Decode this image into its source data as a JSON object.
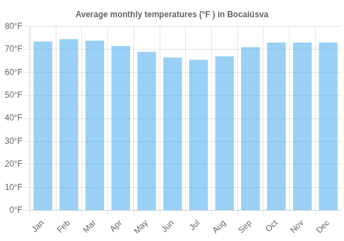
{
  "chart_data": {
    "type": "bar",
    "title": "Average monthly temperatures (°F ) in Bocaiúsva",
    "categories": [
      "Jan",
      "Feb",
      "Mar",
      "Apr",
      "May",
      "Jun",
      "Jul",
      "Aug",
      "Sep",
      "Oct",
      "Nov",
      "Dec"
    ],
    "values": [
      73.5,
      74.5,
      73.8,
      71.5,
      69.0,
      66.5,
      65.5,
      67.0,
      71.0,
      73.0,
      73.0,
      73.0
    ],
    "ylim": [
      0,
      80
    ],
    "yticks": [
      {
        "value": 0,
        "label": "0°F"
      },
      {
        "value": 10,
        "label": "10°F"
      },
      {
        "value": 20,
        "label": "20°F"
      },
      {
        "value": 30,
        "label": "30°F"
      },
      {
        "value": 40,
        "label": "40°F"
      },
      {
        "value": 50,
        "label": "50°F"
      },
      {
        "value": 60,
        "label": "60°F"
      },
      {
        "value": 70,
        "label": "70°F"
      },
      {
        "value": 80,
        "label": "80°F"
      }
    ],
    "grid": true
  }
}
